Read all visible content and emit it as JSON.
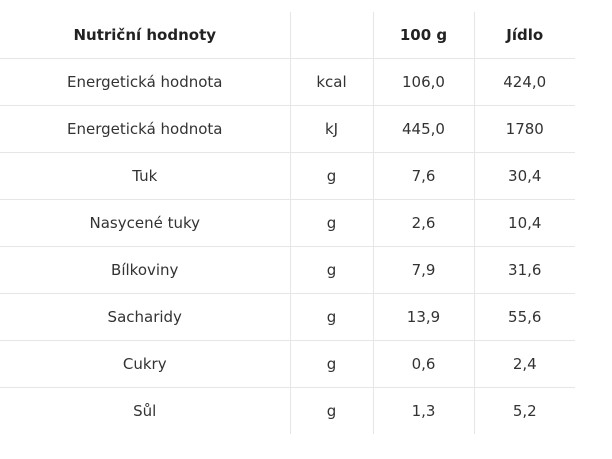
{
  "table": {
    "header": [
      "Nutriční hodnoty",
      "100 g",
      "Jídlo"
    ],
    "rows": [
      [
        "Energetická hodnota",
        "kcal",
        "106,0",
        "424,0"
      ],
      [
        "Energetická hodnota",
        "kJ",
        "445,0",
        "1780"
      ],
      [
        "Tuk",
        "g",
        "7,6",
        "30,4"
      ],
      [
        "Nasycené tuky",
        "g",
        "2,6",
        "10,4"
      ],
      [
        "Bílkoviny",
        "g",
        "7,9",
        "31,6"
      ],
      [
        "Sacharidy",
        "g",
        "13,9",
        "55,6"
      ],
      [
        "Cukry",
        "g",
        "0,6",
        "2,4"
      ],
      [
        "Sůl",
        "g",
        "1,3",
        "5,2"
      ]
    ]
  }
}
